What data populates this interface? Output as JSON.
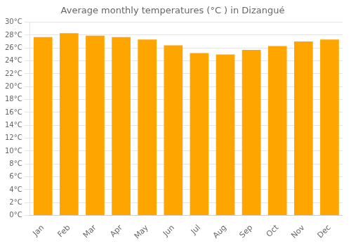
{
  "chart_data": {
    "type": "bar",
    "title": "Average monthly temperatures (°C ) in Dizangué",
    "categories": [
      "Jan",
      "Feb",
      "Mar",
      "Apr",
      "May",
      "Jun",
      "Jul",
      "Aug",
      "Sep",
      "Oct",
      "Nov",
      "Dec"
    ],
    "values": [
      27.7,
      28.3,
      27.9,
      27.7,
      27.3,
      26.4,
      25.2,
      25.0,
      25.7,
      26.3,
      27.0,
      27.3
    ],
    "color": "#FFA500",
    "ylim": [
      0,
      30
    ],
    "yticks": [
      {
        "value": 0,
        "label": "0°C"
      },
      {
        "value": 2,
        "label": "2°C"
      },
      {
        "value": 4,
        "label": "4°C"
      },
      {
        "value": 6,
        "label": "6°C"
      },
      {
        "value": 8,
        "label": "8°C"
      },
      {
        "value": 10,
        "label": "10°C"
      },
      {
        "value": 12,
        "label": "12°C"
      },
      {
        "value": 14,
        "label": "14°C"
      },
      {
        "value": 16,
        "label": "16°C"
      },
      {
        "value": 18,
        "label": "18°C"
      },
      {
        "value": 20,
        "label": "20°C"
      },
      {
        "value": 22,
        "label": "22°C"
      },
      {
        "value": 24,
        "label": "24°C"
      },
      {
        "value": 26,
        "label": "26°C"
      },
      {
        "value": 28,
        "label": "28°C"
      },
      {
        "value": 30,
        "label": "30°C"
      }
    ],
    "grid": true
  }
}
